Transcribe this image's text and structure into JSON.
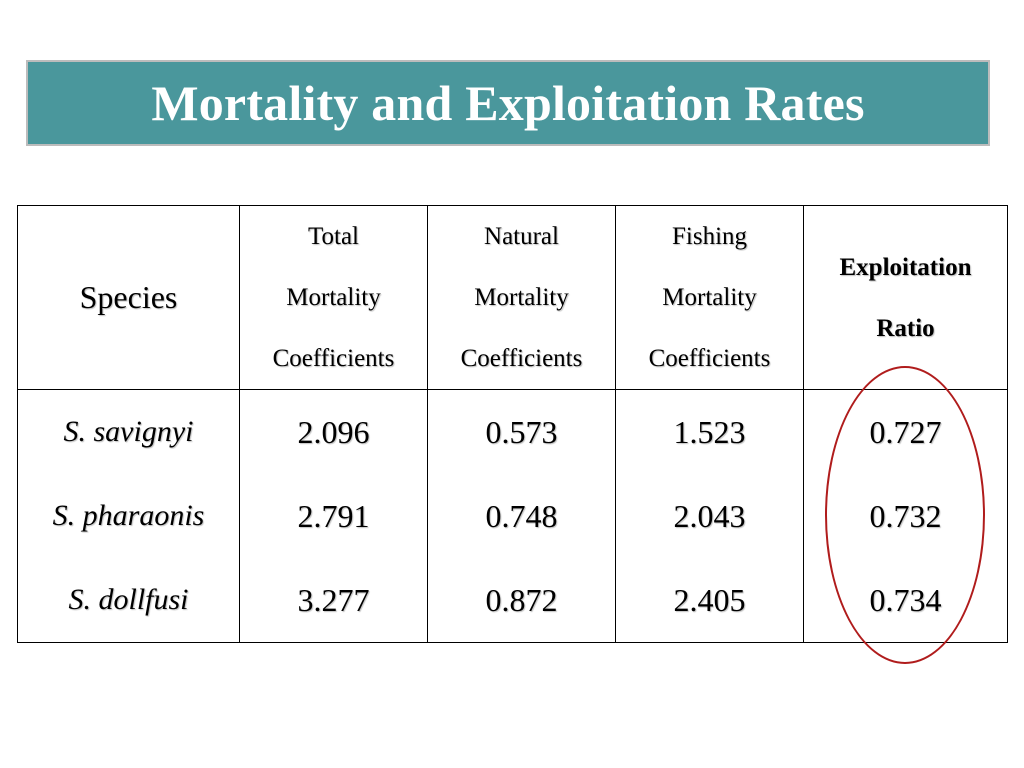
{
  "title": "Mortality and Exploitation Rates",
  "table": {
    "headers": {
      "species": "Species",
      "total": [
        "Total",
        "Mortality",
        "Coefficients"
      ],
      "natural": [
        "Natural",
        "Mortality",
        "Coefficients"
      ],
      "fishing": [
        "Fishing",
        "Mortality",
        "Coefficients"
      ],
      "exploitation": [
        "Exploitation",
        "Ratio"
      ]
    },
    "rows": [
      {
        "species": "S. savignyi",
        "total": "2.096",
        "natural": "0.573",
        "fishing": "1.523",
        "exploitation": "0.727"
      },
      {
        "species": "S. pharaonis",
        "total": "2.791",
        "natural": "0.748",
        "fishing": "2.043",
        "exploitation": "0.732"
      },
      {
        "species": "S. dollfusi",
        "total": "3.277",
        "natural": "0.872",
        "fishing": "2.405",
        "exploitation": "0.734"
      }
    ]
  },
  "colors": {
    "title_bar": "#4a979c",
    "highlight": "#b01c1c"
  }
}
